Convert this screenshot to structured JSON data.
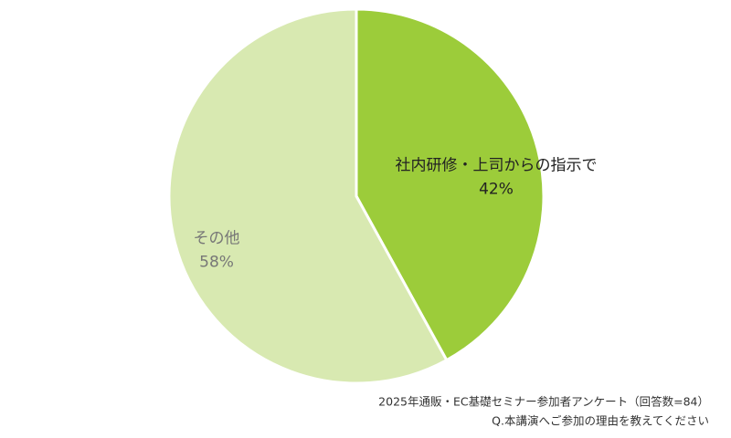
{
  "chart_data": {
    "type": "pie",
    "categories": [
      "社内研修・上司からの指示で",
      "その他"
    ],
    "values": [
      42,
      58
    ],
    "value_labels": [
      "42%",
      "58%"
    ],
    "colors": [
      "#9ccc3a",
      "#d8e9b1"
    ],
    "annotations": [
      "2025年通販・EC基礎セミナー参加者アンケート（回答数=84）",
      "Q.本講演へご参加の理由を教えてください"
    ]
  }
}
